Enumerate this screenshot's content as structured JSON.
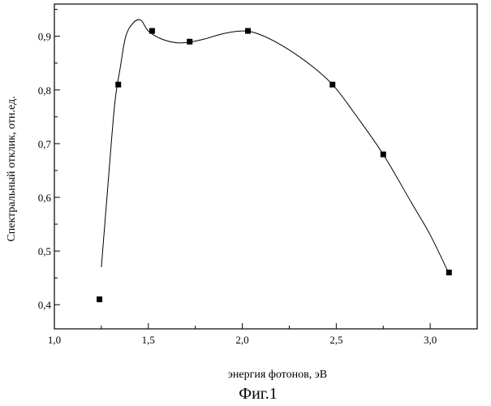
{
  "chart_data": {
    "type": "scatter",
    "title": "",
    "xlabel": "энергия фотонов, эВ",
    "ylabel": "Спектральный отклик, отн.ед.",
    "caption": "Фиг.1",
    "xlim": [
      1.0,
      3.25
    ],
    "ylim": [
      0.355,
      0.96
    ],
    "xticks": [
      1.0,
      1.5,
      2.0,
      2.5,
      3.0
    ],
    "xtick_labels": [
      "1,0",
      "1,5",
      "2,0",
      "2,5",
      "3,0"
    ],
    "yticks": [
      0.4,
      0.5,
      0.6,
      0.7,
      0.8,
      0.9
    ],
    "ytick_labels": [
      "0,4",
      "0,5",
      "0,6",
      "0,7",
      "0,8",
      "0,9"
    ],
    "grid": false,
    "legend": false,
    "series": [
      {
        "marker": "square",
        "points": [
          {
            "x": 1.24,
            "y": 0.41
          },
          {
            "x": 1.34,
            "y": 0.81
          },
          {
            "x": 1.52,
            "y": 0.91
          },
          {
            "x": 1.72,
            "y": 0.89
          },
          {
            "x": 2.03,
            "y": 0.91
          },
          {
            "x": 2.48,
            "y": 0.81
          },
          {
            "x": 2.75,
            "y": 0.68
          },
          {
            "x": 3.1,
            "y": 0.46
          }
        ]
      }
    ],
    "fit_curve": [
      {
        "x": 1.25,
        "y": 0.47
      },
      {
        "x": 1.28,
        "y": 0.6
      },
      {
        "x": 1.32,
        "y": 0.77
      },
      {
        "x": 1.35,
        "y": 0.84
      },
      {
        "x": 1.38,
        "y": 0.9
      },
      {
        "x": 1.42,
        "y": 0.925
      },
      {
        "x": 1.46,
        "y": 0.93
      },
      {
        "x": 1.5,
        "y": 0.91
      },
      {
        "x": 1.57,
        "y": 0.895
      },
      {
        "x": 1.65,
        "y": 0.888
      },
      {
        "x": 1.72,
        "y": 0.889
      },
      {
        "x": 1.8,
        "y": 0.895
      },
      {
        "x": 1.9,
        "y": 0.905
      },
      {
        "x": 2.0,
        "y": 0.91
      },
      {
        "x": 2.08,
        "y": 0.905
      },
      {
        "x": 2.2,
        "y": 0.885
      },
      {
        "x": 2.35,
        "y": 0.85
      },
      {
        "x": 2.48,
        "y": 0.81
      },
      {
        "x": 2.6,
        "y": 0.755
      },
      {
        "x": 2.75,
        "y": 0.68
      },
      {
        "x": 2.9,
        "y": 0.59
      },
      {
        "x": 3.0,
        "y": 0.53
      },
      {
        "x": 3.09,
        "y": 0.465
      }
    ]
  }
}
